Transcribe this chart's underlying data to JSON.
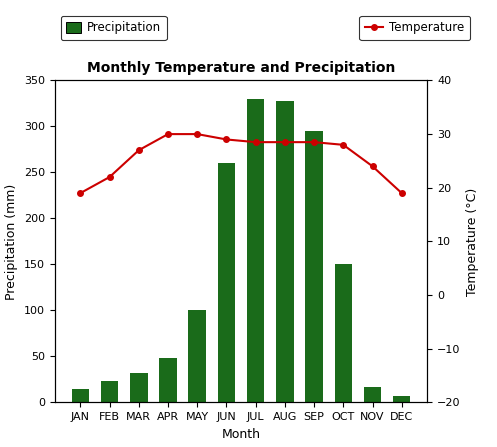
{
  "months": [
    "JAN",
    "FEB",
    "MAR",
    "APR",
    "MAY",
    "JUN",
    "JUL",
    "AUG",
    "SEP",
    "OCT",
    "NOV",
    "DEC"
  ],
  "precipitation": [
    15,
    23,
    32,
    48,
    100,
    260,
    330,
    328,
    295,
    150,
    17,
    7
  ],
  "temperature": [
    19,
    22,
    27,
    30,
    30,
    29,
    28.5,
    28.5,
    28.5,
    28,
    24,
    19
  ],
  "bar_color": "#1a6b1a",
  "line_color": "#cc0000",
  "marker_color": "#cc0000",
  "title": "Monthly Temperature and Precipitation",
  "xlabel": "Month",
  "ylabel_left": "Precipitation (mm)",
  "ylabel_right": "Temperature (°C)",
  "ylim_left": [
    0,
    350
  ],
  "ylim_right": [
    -20,
    40
  ],
  "yticks_left": [
    0,
    50,
    100,
    150,
    200,
    250,
    300,
    350
  ],
  "yticks_right": [
    -20,
    -10,
    0,
    10,
    20,
    30,
    40
  ],
  "legend_precip": "Precipitation",
  "legend_temp": "Temperature",
  "bg_color": "#ffffff",
  "title_fontsize": 10,
  "label_fontsize": 9,
  "tick_fontsize": 8,
  "legend_fontsize": 8.5
}
